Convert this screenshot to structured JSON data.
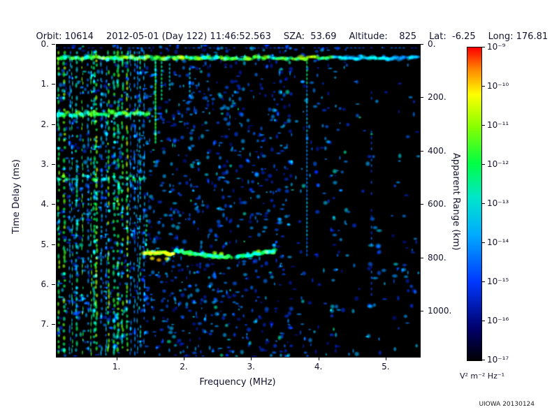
{
  "header": {
    "orbit": "Orbit: 10614",
    "datetime": "2012-05-01 (Day 122) 11:46:52.563",
    "sza": "SZA:  53.69",
    "altitude": "Altitude:    825",
    "lat": "Lat:  -6.25",
    "long": "Long: 176.81"
  },
  "credit": "UIOWA 20130124",
  "chart_data": {
    "type": "heatmap",
    "subtype": "radar-sounder-ionogram-spectrogram",
    "title": "",
    "xlabel": "Frequency (MHz)",
    "ylabel_left": "Time Delay (ms)",
    "ylabel_right": "Apparent Range (km)",
    "xlim": [
      0.1,
      5.5
    ],
    "ylim_left_ms": [
      0,
      7.8
    ],
    "ylim_right_km": [
      0,
      1170
    ],
    "range_km_per_ms": 150,
    "grid": false,
    "background": "#000000",
    "x_ticks": [
      {
        "value": 1,
        "label": "1."
      },
      {
        "value": 2,
        "label": "2."
      },
      {
        "value": 3,
        "label": "3."
      },
      {
        "value": 4,
        "label": "4."
      },
      {
        "value": 5,
        "label": "5."
      }
    ],
    "y_ticks_left": [
      {
        "value": 0,
        "label": "0."
      },
      {
        "value": 1,
        "label": "1."
      },
      {
        "value": 2,
        "label": "2."
      },
      {
        "value": 3,
        "label": "3."
      },
      {
        "value": 4,
        "label": "4."
      },
      {
        "value": 5,
        "label": "5."
      },
      {
        "value": 6,
        "label": "6."
      },
      {
        "value": 7,
        "label": "7."
      }
    ],
    "y_ticks_right": [
      {
        "value": 0,
        "label": "0."
      },
      {
        "value": 200,
        "label": "200."
      },
      {
        "value": 400,
        "label": "400."
      },
      {
        "value": 600,
        "label": "600."
      },
      {
        "value": 800,
        "label": "800."
      },
      {
        "value": 1000,
        "label": "1000."
      }
    ],
    "colorbar": {
      "scale": "log",
      "tick_labels": [
        "10⁻⁹",
        "10⁻¹⁰",
        "10⁻¹¹",
        "10⁻¹²",
        "10⁻¹³",
        "10⁻¹⁴",
        "10⁻¹⁵",
        "10⁻¹⁶",
        "10⁻¹⁷"
      ],
      "max_exponent": -9,
      "min_exponent": -17,
      "units": "V² m⁻² Hz⁻¹"
    },
    "colormap_stops": [
      {
        "v": 0.0,
        "color": "#000005"
      },
      {
        "v": 0.1,
        "color": "#00006a"
      },
      {
        "v": 0.25,
        "color": "#0038ff"
      },
      {
        "v": 0.4,
        "color": "#00aaff"
      },
      {
        "v": 0.52,
        "color": "#00e6cc"
      },
      {
        "v": 0.63,
        "color": "#00ff44"
      },
      {
        "v": 0.75,
        "color": "#8cff00"
      },
      {
        "v": 0.85,
        "color": "#ffff00"
      },
      {
        "v": 0.93,
        "color": "#ff8800"
      },
      {
        "v": 1.0,
        "color": "#ff0000"
      }
    ],
    "features": {
      "surface_echo": {
        "delay_ms": 0.33,
        "f_range_mhz": [
          0.1,
          5.5
        ]
      },
      "local_interference_bands_ms": [
        1.72,
        3.32
      ],
      "plasma_harmonic_max_f_mhz": 1.45,
      "ionosphere_echo": {
        "delay_ms": 5.2,
        "f_range_mhz": [
          1.4,
          3.35
        ],
        "apparent_range_km": 780
      },
      "vertical_interference_mhz": [
        1.57,
        3.82,
        4.78
      ]
    }
  }
}
